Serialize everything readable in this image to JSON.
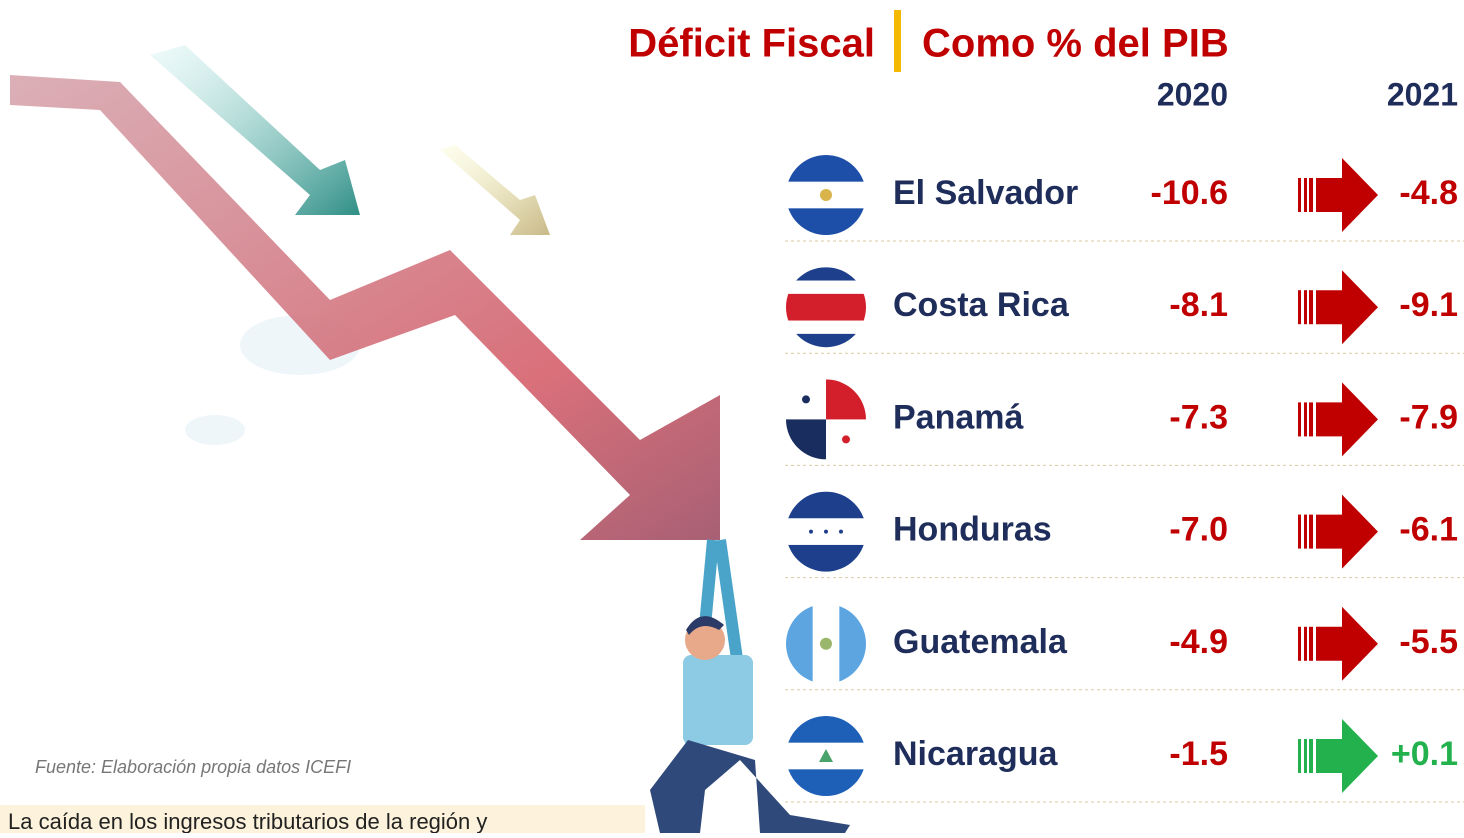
{
  "header": {
    "title_left": "Déficit Fiscal",
    "title_right": "Como % del PIB"
  },
  "table": {
    "columns": [
      "2020",
      "2021"
    ],
    "rows": [
      {
        "country": "El Salvador",
        "2020": "-10.6",
        "2021": "-4.8",
        "arrow_color": "#c00000"
      },
      {
        "country": "Costa Rica",
        "2020": "-8.1",
        "2021": "-9.1",
        "arrow_color": "#c00000"
      },
      {
        "country": "Panamá",
        "2020": "-7.3",
        "2021": "-7.9",
        "arrow_color": "#c00000"
      },
      {
        "country": "Honduras",
        "2020": "-7.0",
        "2021": "-6.1",
        "arrow_color": "#c00000"
      },
      {
        "country": "Guatemala",
        "2020": "-4.9",
        "2021": "-5.5",
        "arrow_color": "#c00000"
      },
      {
        "country": "Nicaragua",
        "2020": "-1.5",
        "2021": "+0.1",
        "arrow_color": "#22b14c"
      }
    ]
  },
  "source": "Fuente: Elaboración propia datos ICEFI",
  "footer_text": "La caída en los ingresos tributarios de la región y"
}
